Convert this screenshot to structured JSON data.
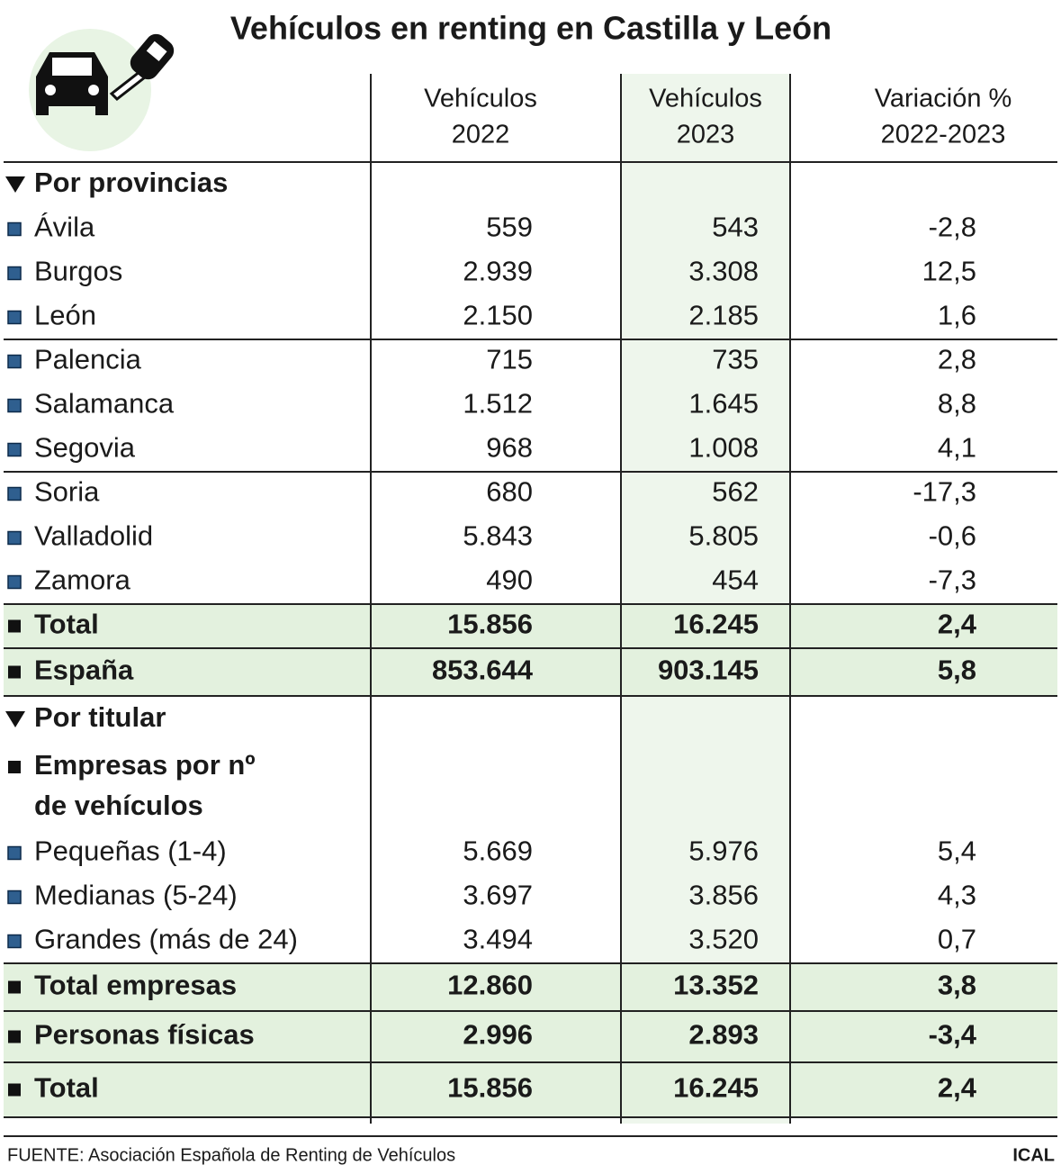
{
  "title": "Vehículos en renting en Castilla y León",
  "table": {
    "columns": [
      [
        "Vehículos",
        "2022"
      ],
      [
        "Vehículos",
        "2023"
      ],
      [
        "Variación %",
        "2022-2023"
      ]
    ],
    "sections": [
      {
        "heading": "Por provincias",
        "groups": [
          [
            {
              "label": "Ávila",
              "values": [
                "559",
                "543",
                "-2,8"
              ]
            },
            {
              "label": "Burgos",
              "values": [
                "2.939",
                "3.308",
                "12,5"
              ]
            },
            {
              "label": "León",
              "values": [
                "2.150",
                "2.185",
                "1,6"
              ]
            }
          ],
          [
            {
              "label": "Palencia",
              "values": [
                "715",
                "735",
                "2,8"
              ]
            },
            {
              "label": "Salamanca",
              "values": [
                "1.512",
                "1.645",
                "8,8"
              ]
            },
            {
              "label": "Segovia",
              "values": [
                "968",
                "1.008",
                "4,1"
              ]
            }
          ],
          [
            {
              "label": "Soria",
              "values": [
                "680",
                "562",
                "-17,3"
              ]
            },
            {
              "label": "Valladolid",
              "values": [
                "5.843",
                "5.805",
                "-0,6"
              ]
            },
            {
              "label": "Zamora",
              "values": [
                "490",
                "454",
                "-7,3"
              ]
            }
          ]
        ],
        "totals": [
          {
            "label": "Total",
            "values": [
              "15.856",
              "16.245",
              "2,4"
            ]
          },
          {
            "label": "España",
            "values": [
              "853.644",
              "903.145",
              "5,8"
            ]
          }
        ]
      },
      {
        "heading": "Por titular",
        "subheading": [
          "Empresas por nº",
          "de vehículos"
        ],
        "groups": [
          [
            {
              "label": "Pequeñas (1-4)",
              "values": [
                "5.669",
                "5.976",
                "5,4"
              ]
            },
            {
              "label": "Medianas (5-24)",
              "values": [
                "3.697",
                "3.856",
                "4,3"
              ]
            },
            {
              "label": "Grandes (más de 24)",
              "values": [
                "3.494",
                "3.520",
                "0,7"
              ]
            }
          ]
        ],
        "totals": [
          {
            "label": "Total empresas",
            "values": [
              "12.860",
              "13.352",
              "3,8"
            ]
          },
          {
            "label": "Personas físicas",
            "values": [
              "2.996",
              "2.893",
              "-3,4"
            ]
          },
          {
            "label": "Total",
            "values": [
              "15.856",
              "16.245",
              "2,4"
            ]
          }
        ]
      }
    ]
  },
  "source": "FUENTE: Asociación Española de Renting de Vehículos",
  "credit": "ICAL"
}
